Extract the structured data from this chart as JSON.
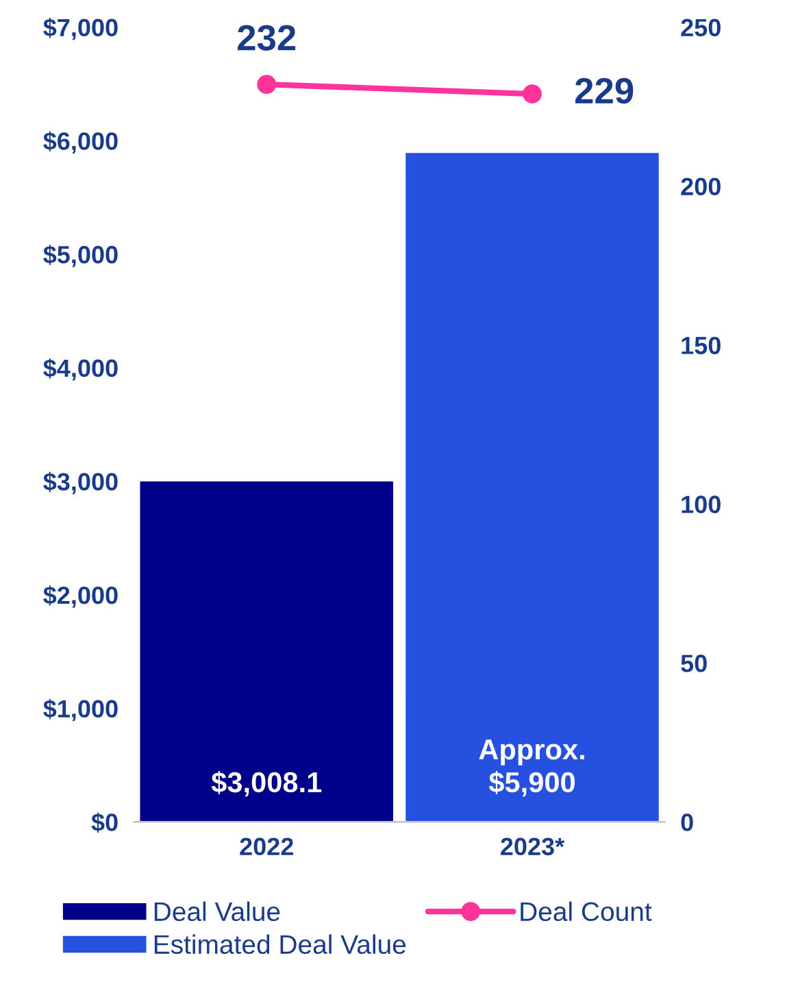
{
  "chart_data": {
    "type": "bar",
    "categories": [
      "2022",
      "2023*"
    ],
    "series": [
      {
        "name": "Deal Value",
        "color": "#00008b",
        "values": [
          3008.1,
          null
        ],
        "value_labels": [
          "$3,008.1",
          null
        ]
      },
      {
        "name": "Estimated Deal Value",
        "color": "#2550e0",
        "values": [
          null,
          5900
        ],
        "value_labels": [
          null,
          "Approx.\n$5,900"
        ]
      },
      {
        "name": "Deal Count",
        "type": "line",
        "axis": "y2",
        "color": "#ff3399",
        "values": [
          232,
          229
        ],
        "value_labels": [
          "232",
          "229"
        ]
      }
    ],
    "ylim": [
      0,
      7000
    ],
    "yticks": [
      {
        "value": 0,
        "label": "$0"
      },
      {
        "value": 1000,
        "label": "$1,000"
      },
      {
        "value": 2000,
        "label": "$2,000"
      },
      {
        "value": 3000,
        "label": "$3,000"
      },
      {
        "value": 4000,
        "label": "$4,000"
      },
      {
        "value": 5000,
        "label": "$5,000"
      },
      {
        "value": 6000,
        "label": "$6,000"
      },
      {
        "value": 7000,
        "label": "$7,000"
      }
    ],
    "y2lim": [
      0,
      250
    ],
    "y2ticks": [
      0,
      50,
      100,
      150,
      200,
      250
    ],
    "legend": "bottom",
    "marker": "circle",
    "grid": false
  }
}
